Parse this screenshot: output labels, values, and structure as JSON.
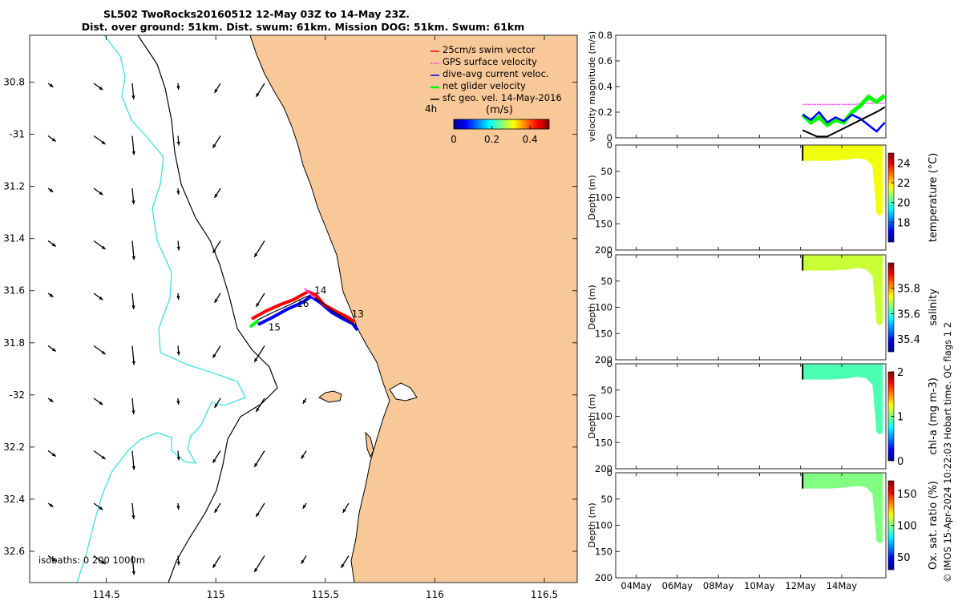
{
  "title": {
    "line1": "SL502 TwoRocks20160512 12-May 03Z to 14-May 23Z.",
    "line2": "Dist. over ground: 51km. Dist. swum: 61km. Mission DOG: 51km. Swum: 61km"
  },
  "side_text": "© IMOS 15-Apr-2024 10:22:03 Hobart time. QC flags 1  2",
  "colors": {
    "land": "#f8c898",
    "isobath_shallow": "#40e0e0",
    "coast": "#000000",
    "swim_vector": "#ff0000",
    "gps_velocity": "#ff40ff",
    "dive_avg": "#0000ff",
    "net_glider": "#00ff00",
    "geo_vel": "#000000"
  },
  "chart_data": [
    {
      "type": "map",
      "name": "glider track map",
      "xlim": [
        114.15,
        116.65
      ],
      "ylim": [
        -32.72,
        -30.62
      ],
      "x_ticks": [
        114.5,
        115,
        115.5,
        116,
        116.5
      ],
      "x_tick_labels": [
        "114.5",
        "115",
        "115.5",
        "116",
        "116.5"
      ],
      "y_ticks": [
        -30.8,
        -31,
        -31.2,
        -31.4,
        -31.6,
        -31.8,
        -32,
        -32.2,
        -32.4,
        -32.6
      ],
      "y_tick_labels": [
        "30.8",
        "-31",
        "31.2",
        "31.4",
        "31.6",
        "31.8",
        "-32",
        "32.2",
        "32.4",
        "32.6"
      ],
      "legend": {
        "items": [
          {
            "label": "25cm/s swim vector",
            "color": "#ff0000"
          },
          {
            "label": "GPS surface velocity",
            "color": "#ff40ff"
          },
          {
            "label": "dive-avg current veloc.",
            "color": "#0000ff"
          },
          {
            "label": "net glider velocity",
            "color": "#00ff00"
          },
          {
            "label": "sfc geo. vel. 14-May-2016",
            "color": "#000000"
          }
        ],
        "placement": "top-right"
      },
      "time_step_label": "4h",
      "colorbar": {
        "label": "(m/s)",
        "ticks": [
          0,
          0.2,
          0.4
        ],
        "tick_labels": [
          "0",
          "0.2",
          "0.4"
        ],
        "range": [
          0,
          0.5
        ]
      },
      "isobath_label": "isobaths: 0   200  1000m",
      "day_labels": [
        {
          "text": "14",
          "lon": 115.45,
          "lat": -31.6
        },
        {
          "text": "16",
          "lon": 115.37,
          "lat": -31.65
        },
        {
          "text": "13",
          "lon": 115.62,
          "lat": -31.69
        },
        {
          "text": "15",
          "lon": 115.24,
          "lat": -31.74
        }
      ],
      "track": {
        "lon": [
          115.14,
          115.22,
          115.3,
          115.38,
          115.41,
          115.48,
          115.56,
          115.62
        ],
        "lat": [
          -31.72,
          -31.7,
          -31.66,
          -31.63,
          -31.61,
          -31.64,
          -31.7,
          -31.74
        ]
      }
    },
    {
      "type": "line",
      "name": "velocity magnitude",
      "ylabel": "velocity magnitude (m/s)",
      "ylim": [
        0,
        0.8
      ],
      "y_ticks": [
        0,
        0.2,
        0.4,
        0.6,
        0.8
      ],
      "x_ticks": [
        "04May",
        "06May",
        "08May",
        "10May",
        "12May",
        "14May"
      ],
      "x_day_range": [
        3,
        16.15
      ],
      "series": [
        {
          "color": "#ff40ff",
          "x": [
            12.1,
            12.6,
            13.1,
            13.6,
            14.1,
            14.6,
            15.1,
            15.6,
            16.1
          ],
          "y": [
            0.26,
            0.26,
            0.26,
            0.26,
            0.26,
            0.26,
            0.27,
            0.27,
            0.27
          ]
        },
        {
          "color": "#00ff00",
          "x": [
            12.1,
            12.5,
            12.9,
            13.3,
            13.7,
            14.1,
            14.5,
            14.9,
            15.3,
            15.7,
            16.1
          ],
          "y": [
            0.18,
            0.12,
            0.16,
            0.1,
            0.14,
            0.12,
            0.2,
            0.25,
            0.32,
            0.28,
            0.33
          ]
        },
        {
          "color": "#0000ff",
          "x": [
            12.1,
            12.5,
            12.9,
            13.3,
            13.7,
            14.1,
            14.5,
            14.9,
            15.3,
            15.7,
            16.1
          ],
          "y": [
            0.18,
            0.14,
            0.2,
            0.12,
            0.16,
            0.13,
            0.18,
            0.15,
            0.1,
            0.05,
            0.12
          ]
        },
        {
          "color": "#000000",
          "x": [
            12.1,
            12.8,
            13.3,
            13.8,
            14.3,
            14.8,
            15.3,
            15.8,
            16.1
          ],
          "y": [
            0.06,
            0.01,
            0.01,
            0.05,
            0.09,
            0.13,
            0.17,
            0.21,
            0.24
          ]
        }
      ]
    },
    {
      "type": "heatmap",
      "name": "temperature section",
      "ylabel": "Depth (m)",
      "colorbar_label": "temperature (°C)",
      "ylim": [
        200,
        0
      ],
      "y_ticks": [
        0,
        50,
        100,
        150,
        200
      ],
      "clim": [
        16,
        25
      ],
      "cbar_ticks": [
        18,
        20,
        22,
        24
      ],
      "fill_value": 21.5,
      "sample_days": [
        12.1,
        12.8,
        13.5,
        14.2,
        14.8,
        15.2,
        15.5,
        15.7,
        15.85,
        16.0
      ],
      "sample_max_depth": [
        30,
        30,
        30,
        28,
        25,
        28,
        40,
        130,
        135,
        130
      ]
    },
    {
      "type": "heatmap",
      "name": "salinity section",
      "ylabel": "Depth (m)",
      "colorbar_label": "salinity",
      "ylim": [
        200,
        0
      ],
      "y_ticks": [
        0,
        50,
        100,
        150,
        200
      ],
      "clim": [
        35.3,
        36.0
      ],
      "cbar_ticks": [
        35.4,
        35.6,
        35.8
      ],
      "fill_value": 35.7,
      "sample_days": [
        12.1,
        12.8,
        13.5,
        14.2,
        14.8,
        15.2,
        15.5,
        15.7,
        15.85,
        16.0
      ],
      "sample_max_depth": [
        30,
        30,
        30,
        28,
        25,
        28,
        40,
        130,
        135,
        130
      ]
    },
    {
      "type": "heatmap",
      "name": "chlorophyll section",
      "ylabel": "Depth (m)",
      "colorbar_label": "chl-a (mg m-3)",
      "ylim": [
        200,
        0
      ],
      "y_ticks": [
        0,
        50,
        100,
        150,
        200
      ],
      "clim": [
        0,
        2
      ],
      "cbar_ticks": [
        0,
        1,
        2
      ],
      "fill_value": 0.9,
      "sample_days": [
        12.1,
        12.8,
        13.5,
        14.2,
        14.8,
        15.2,
        15.5,
        15.7,
        15.85,
        16.0
      ],
      "sample_max_depth": [
        30,
        30,
        30,
        28,
        25,
        28,
        40,
        130,
        135,
        130
      ]
    },
    {
      "type": "heatmap",
      "name": "oxygen saturation section",
      "ylabel": "Depth (m)",
      "colorbar_label": "Ox. sat. ratio (%)",
      "ylim": [
        200,
        0
      ],
      "y_ticks": [
        0,
        50,
        100,
        150,
        200
      ],
      "clim": [
        30,
        170
      ],
      "cbar_ticks": [
        50,
        100,
        150
      ],
      "fill_value": 100,
      "sample_days": [
        12.1,
        12.8,
        13.5,
        14.2,
        14.8,
        15.2,
        15.5,
        15.7,
        15.85,
        16.0
      ],
      "sample_max_depth": [
        30,
        30,
        30,
        28,
        25,
        28,
        40,
        130,
        135,
        130
      ]
    }
  ]
}
